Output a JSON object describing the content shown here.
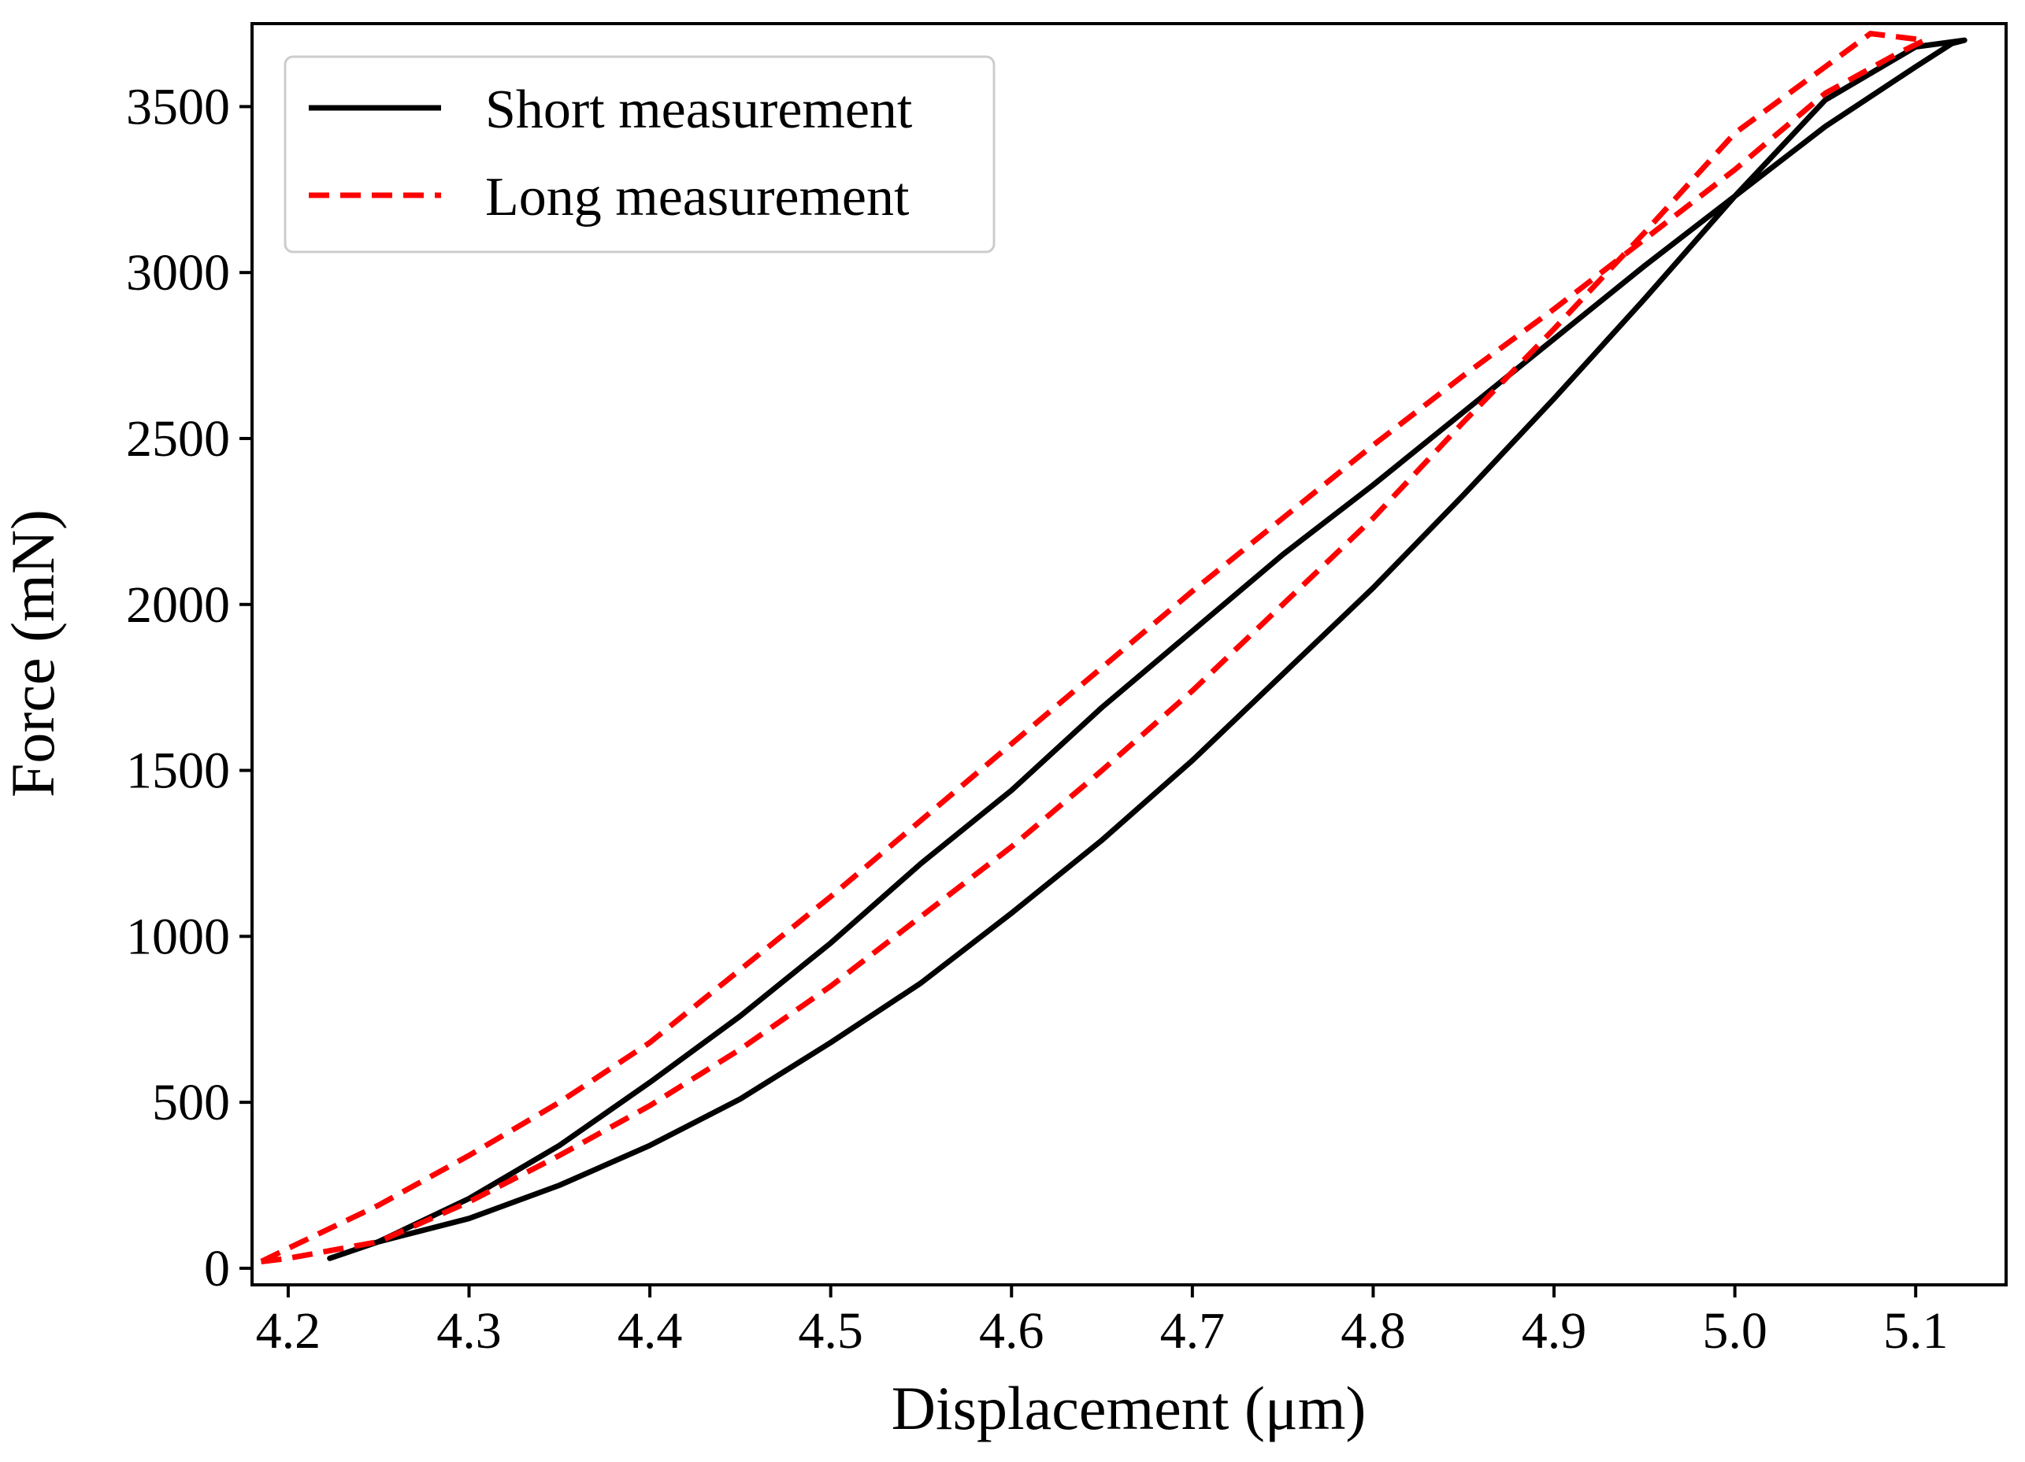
{
  "chart_data": {
    "type": "line",
    "title": "",
    "xlabel": "Displacement (μm)",
    "ylabel": "Force (mN)",
    "xlim": [
      4.18,
      5.15
    ],
    "ylim": [
      -50,
      3750
    ],
    "x_ticks": [
      4.2,
      4.3,
      4.4,
      4.5,
      4.6,
      4.7,
      4.8,
      4.9,
      5.0,
      5.1
    ],
    "x_tick_labels": [
      "4.2",
      "4.3",
      "4.4",
      "4.5",
      "4.6",
      "4.7",
      "4.8",
      "4.9",
      "5.0",
      "5.1"
    ],
    "y_ticks": [
      0,
      500,
      1000,
      1500,
      2000,
      2500,
      3000,
      3500
    ],
    "y_tick_labels": [
      "0",
      "500",
      "1000",
      "1500",
      "2000",
      "2500",
      "3000",
      "3500"
    ],
    "grid": false,
    "legend_position": "top-left",
    "series": [
      {
        "name": "Short measurement",
        "color": "#000000",
        "style": "solid",
        "x": [
          4.223,
          4.25,
          4.3,
          4.35,
          4.4,
          4.45,
          4.5,
          4.55,
          4.6,
          4.65,
          4.7,
          4.75,
          4.8,
          4.85,
          4.9,
          4.95,
          5.0,
          5.05,
          5.1,
          5.127,
          5.12,
          5.1,
          5.05,
          5.0,
          4.95,
          4.9,
          4.85,
          4.8,
          4.75,
          4.7,
          4.65,
          4.6,
          4.55,
          4.5,
          4.45,
          4.4,
          4.35,
          4.3,
          4.25,
          4.223
        ],
        "y": [
          30,
          80,
          150,
          250,
          370,
          510,
          680,
          860,
          1070,
          1290,
          1530,
          1790,
          2050,
          2330,
          2620,
          2920,
          3230,
          3520,
          3680,
          3700,
          3690,
          3620,
          3440,
          3230,
          3020,
          2800,
          2580,
          2360,
          2150,
          1920,
          1690,
          1440,
          1220,
          980,
          760,
          560,
          370,
          210,
          80,
          30
        ]
      },
      {
        "name": "Long measurement",
        "color": "#ff0000",
        "style": "dashed",
        "x": [
          4.185,
          4.2,
          4.25,
          4.3,
          4.35,
          4.4,
          4.45,
          4.5,
          4.55,
          4.6,
          4.65,
          4.7,
          4.75,
          4.8,
          4.85,
          4.9,
          4.95,
          5.0,
          5.05,
          5.075,
          5.105,
          5.09,
          5.05,
          5.0,
          4.95,
          4.9,
          4.85,
          4.8,
          4.75,
          4.7,
          4.65,
          4.6,
          4.55,
          4.5,
          4.45,
          4.4,
          4.35,
          4.3,
          4.25,
          4.2,
          4.185
        ],
        "y": [
          20,
          30,
          80,
          200,
          340,
          490,
          660,
          850,
          1060,
          1270,
          1500,
          1740,
          2000,
          2260,
          2550,
          2830,
          3120,
          3420,
          3620,
          3720,
          3700,
          3660,
          3540,
          3310,
          3100,
          2890,
          2690,
          2480,
          2260,
          2040,
          1810,
          1580,
          1350,
          1120,
          900,
          680,
          500,
          340,
          190,
          60,
          20
        ]
      }
    ]
  }
}
